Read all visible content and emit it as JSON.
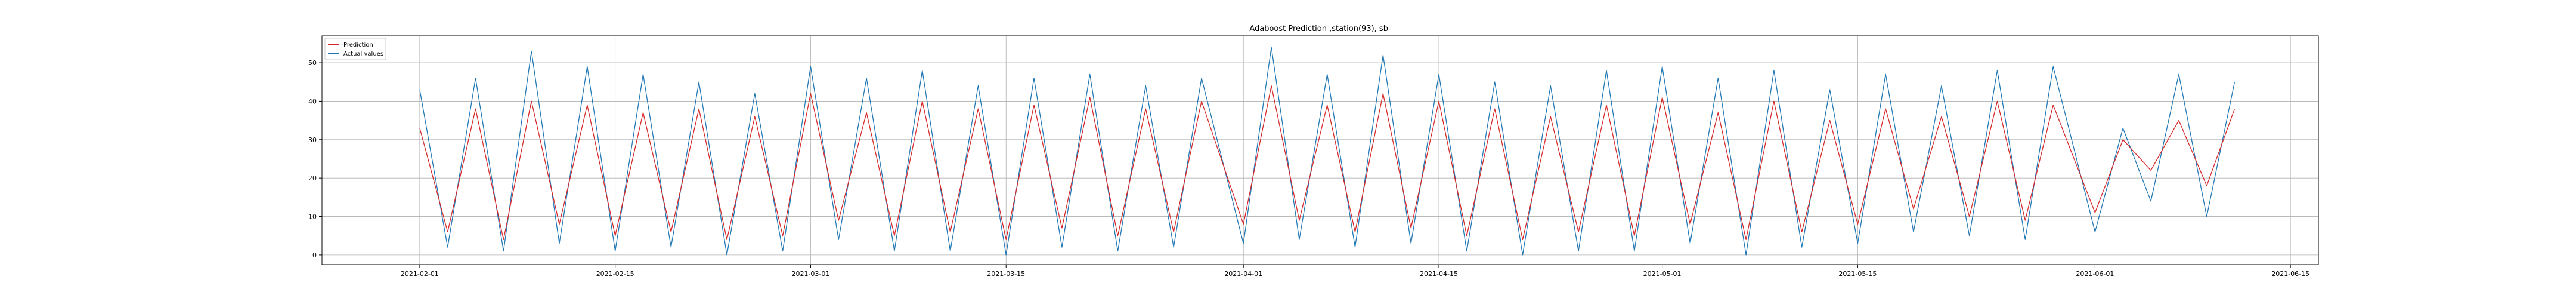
{
  "chart_data": {
    "type": "line",
    "title": "Adaboost Prediction ,station(93), sb-",
    "xlabel": "",
    "ylabel": "",
    "x_ticks": [
      "2021-02-01",
      "2021-02-15",
      "2021-03-01",
      "2021-03-15",
      "2021-04-01",
      "2021-04-15",
      "2021-05-01",
      "2021-05-15",
      "2021-06-01",
      "2021-06-15"
    ],
    "xlim": [
      "2021-01-25",
      "2021-06-17"
    ],
    "ylim": [
      -2.5,
      57
    ],
    "y_ticks": [
      0,
      10,
      20,
      30,
      40,
      50
    ],
    "grid": true,
    "legend": "upper left",
    "series": [
      {
        "name": "Prediction",
        "color": "#d62728",
        "x": [
          "2021-02-01",
          "2021-02-03",
          "2021-02-05",
          "2021-02-07",
          "2021-02-09",
          "2021-02-11",
          "2021-02-13",
          "2021-02-15",
          "2021-02-17",
          "2021-02-19",
          "2021-02-21",
          "2021-02-23",
          "2021-02-25",
          "2021-02-27",
          "2021-03-01",
          "2021-03-03",
          "2021-03-05",
          "2021-03-07",
          "2021-03-09",
          "2021-03-11",
          "2021-03-13",
          "2021-03-15",
          "2021-03-17",
          "2021-03-19",
          "2021-03-21",
          "2021-03-23",
          "2021-03-25",
          "2021-03-27",
          "2021-03-29",
          "2021-04-01",
          "2021-04-03",
          "2021-04-05",
          "2021-04-07",
          "2021-04-09",
          "2021-04-11",
          "2021-04-13",
          "2021-04-15",
          "2021-04-17",
          "2021-04-19",
          "2021-04-21",
          "2021-04-23",
          "2021-04-25",
          "2021-04-27",
          "2021-04-29",
          "2021-05-01",
          "2021-05-03",
          "2021-05-05",
          "2021-05-07",
          "2021-05-09",
          "2021-05-11",
          "2021-05-13",
          "2021-05-15",
          "2021-05-17",
          "2021-05-19",
          "2021-05-21",
          "2021-05-23",
          "2021-05-25",
          "2021-05-27",
          "2021-05-29",
          "2021-06-01",
          "2021-06-03",
          "2021-06-05",
          "2021-06-07",
          "2021-06-09",
          "2021-06-11"
        ],
        "values": [
          33,
          6,
          38,
          4,
          40,
          8,
          39,
          5,
          37,
          6,
          38,
          4,
          36,
          5,
          42,
          9,
          37,
          5,
          40,
          6,
          38,
          4,
          39,
          7,
          41,
          5,
          38,
          6,
          40,
          8,
          44,
          9,
          39,
          6,
          42,
          7,
          40,
          5,
          38,
          4,
          36,
          6,
          39,
          5,
          41,
          8,
          37,
          4,
          40,
          6,
          35,
          8,
          38,
          12,
          36,
          10,
          40,
          9,
          39,
          11,
          30,
          22,
          35,
          18,
          38
        ]
      },
      {
        "name": "Actual values",
        "color": "#1f77b4",
        "x": [
          "2021-02-01",
          "2021-02-03",
          "2021-02-05",
          "2021-02-07",
          "2021-02-09",
          "2021-02-11",
          "2021-02-13",
          "2021-02-15",
          "2021-02-17",
          "2021-02-19",
          "2021-02-21",
          "2021-02-23",
          "2021-02-25",
          "2021-02-27",
          "2021-03-01",
          "2021-03-03",
          "2021-03-05",
          "2021-03-07",
          "2021-03-09",
          "2021-03-11",
          "2021-03-13",
          "2021-03-15",
          "2021-03-17",
          "2021-03-19",
          "2021-03-21",
          "2021-03-23",
          "2021-03-25",
          "2021-03-27",
          "2021-03-29",
          "2021-04-01",
          "2021-04-03",
          "2021-04-05",
          "2021-04-07",
          "2021-04-09",
          "2021-04-11",
          "2021-04-13",
          "2021-04-15",
          "2021-04-17",
          "2021-04-19",
          "2021-04-21",
          "2021-04-23",
          "2021-04-25",
          "2021-04-27",
          "2021-04-29",
          "2021-05-01",
          "2021-05-03",
          "2021-05-05",
          "2021-05-07",
          "2021-05-09",
          "2021-05-11",
          "2021-05-13",
          "2021-05-15",
          "2021-05-17",
          "2021-05-19",
          "2021-05-21",
          "2021-05-23",
          "2021-05-25",
          "2021-05-27",
          "2021-05-29",
          "2021-06-01",
          "2021-06-03",
          "2021-06-05",
          "2021-06-07",
          "2021-06-09",
          "2021-06-11"
        ],
        "values": [
          43,
          2,
          46,
          1,
          53,
          3,
          49,
          1,
          47,
          2,
          45,
          0,
          42,
          1,
          49,
          4,
          46,
          1,
          48,
          1,
          44,
          0,
          46,
          2,
          47,
          1,
          44,
          2,
          46,
          3,
          54,
          4,
          47,
          2,
          52,
          3,
          47,
          1,
          45,
          0,
          44,
          1,
          48,
          1,
          49,
          3,
          46,
          0,
          48,
          2,
          43,
          3,
          47,
          6,
          44,
          5,
          48,
          4,
          49,
          6,
          33,
          14,
          47,
          10,
          45
        ]
      }
    ]
  }
}
